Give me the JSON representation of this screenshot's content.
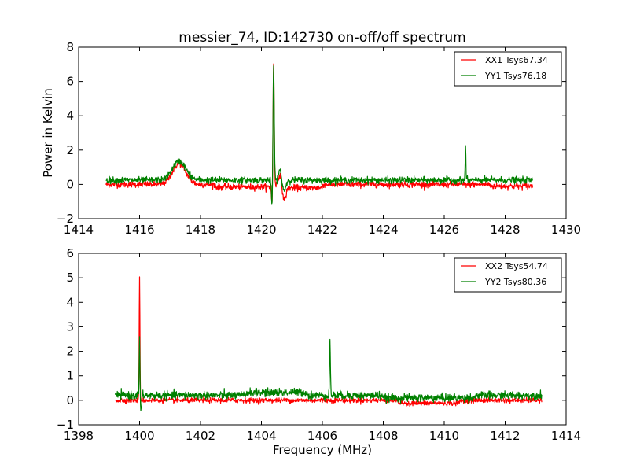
{
  "chart_data": [
    {
      "type": "line",
      "title": "messier_74, ID:142730 on-off/off spectrum",
      "xlabel": "",
      "ylabel": "Power in Kelvin",
      "xlim": [
        1414,
        1430
      ],
      "ylim": [
        -2,
        8
      ],
      "xticks": [
        1414,
        1416,
        1418,
        1420,
        1422,
        1424,
        1426,
        1428,
        1430
      ],
      "yticks": [
        -2,
        0,
        2,
        4,
        6,
        8
      ],
      "xtick_labels": [
        "1414",
        "1416",
        "1418",
        "1420",
        "1422",
        "1424",
        "1426",
        "1428",
        "1430"
      ],
      "ytick_labels": [
        "−2",
        "0",
        "2",
        "4",
        "6",
        "8"
      ],
      "grid": false,
      "legend_position": "top-right",
      "x_range": [
        1414.9,
        1428.9
      ],
      "series": [
        {
          "name": "XX1 Tsys67.34",
          "color": "#ff0000",
          "baseline": 0.0,
          "noise": 0.09,
          "features": [
            {
              "x": 1417.3,
              "height": 1.2,
              "width": 0.22,
              "kind": "gauss"
            },
            {
              "x": 1420.4,
              "height": 7.0,
              "width": 0.02,
              "kind": "gauss"
            },
            {
              "x": 1420.35,
              "height": -1.3,
              "width": 0.02,
              "kind": "gauss"
            },
            {
              "x": 1420.6,
              "height": 0.6,
              "width": 0.04,
              "kind": "gauss"
            },
            {
              "x": 1420.75,
              "height": -0.9,
              "width": 0.05,
              "kind": "gauss"
            }
          ],
          "segments": [
            {
              "from": 1418.5,
              "to": 1420.3,
              "offset": -0.15
            },
            {
              "from": 1420.8,
              "to": 1422.0,
              "offset": -0.2
            },
            {
              "from": 1427.5,
              "to": 1428.9,
              "offset": -0.1
            }
          ]
        },
        {
          "name": "YY1 Tsys76.18",
          "color": "#008000",
          "baseline": 0.25,
          "noise": 0.09,
          "features": [
            {
              "x": 1417.3,
              "height": 1.1,
              "width": 0.22,
              "kind": "gauss"
            },
            {
              "x": 1420.4,
              "height": 6.8,
              "width": 0.02,
              "kind": "gauss"
            },
            {
              "x": 1420.35,
              "height": -1.6,
              "width": 0.02,
              "kind": "gauss"
            },
            {
              "x": 1420.6,
              "height": 0.6,
              "width": 0.04,
              "kind": "gauss"
            },
            {
              "x": 1420.75,
              "height": -0.6,
              "width": 0.05,
              "kind": "gauss"
            },
            {
              "x": 1426.7,
              "height": 1.95,
              "width": 0.012,
              "kind": "gauss"
            }
          ],
          "segments": []
        }
      ]
    },
    {
      "type": "line",
      "title": "",
      "xlabel": "Frequency (MHz)",
      "ylabel": "",
      "xlim": [
        1398,
        1414
      ],
      "ylim": [
        -1,
        6
      ],
      "xticks": [
        1398,
        1400,
        1402,
        1404,
        1406,
        1408,
        1410,
        1412,
        1414
      ],
      "yticks": [
        -1,
        0,
        1,
        2,
        3,
        4,
        5,
        6
      ],
      "xtick_labels": [
        "1398",
        "1400",
        "1402",
        "1404",
        "1406",
        "1408",
        "1410",
        "1412",
        "1414"
      ],
      "ytick_labels": [
        "−1",
        "0",
        "1",
        "2",
        "3",
        "4",
        "5",
        "6"
      ],
      "grid": false,
      "legend_position": "top-right",
      "x_range": [
        1399.2,
        1413.2
      ],
      "series": [
        {
          "name": "XX2 Tsys54.74",
          "color": "#ff0000",
          "baseline": 0.0,
          "noise": 0.05,
          "features": [
            {
              "x": 1400.0,
              "height": 5.0,
              "width": 0.012,
              "kind": "gauss"
            }
          ],
          "segments": [
            {
              "from": 1408.5,
              "to": 1410.5,
              "offset": -0.12
            }
          ]
        },
        {
          "name": "YY2 Tsys80.36",
          "color": "#008000",
          "baseline": 0.2,
          "noise": 0.08,
          "features": [
            {
              "x": 1400.0,
              "height": 2.3,
              "width": 0.012,
              "kind": "gauss"
            },
            {
              "x": 1400.05,
              "height": -0.6,
              "width": 0.02,
              "kind": "gauss"
            },
            {
              "x": 1406.25,
              "height": 2.2,
              "width": 0.015,
              "kind": "gauss"
            }
          ],
          "segments": [
            {
              "from": 1403.5,
              "to": 1405.5,
              "offset": 0.12
            },
            {
              "from": 1408.0,
              "to": 1411.0,
              "offset": -0.1
            }
          ]
        }
      ]
    }
  ]
}
